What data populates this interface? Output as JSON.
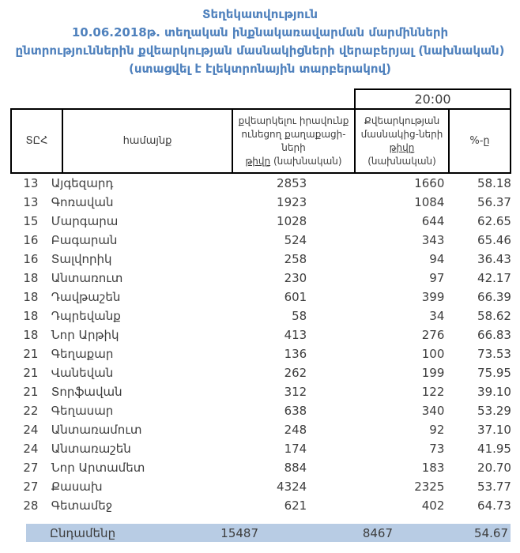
{
  "page": {
    "accent_blue": "#4f81bd",
    "highlight_blue": "#b8cce4",
    "text_color": "#3d3d3d"
  },
  "title": {
    "line1": "Տեղեկատվություն",
    "line2": "10.06.2018թ. տեղական ինքնակառավարման մարմինների",
    "line3": "ընտրություններին քվեարկության մասնակիցների վերաբերյալ (նախնական)",
    "line4": "(ստացվել է էլեկտրոնային տարբերակով)"
  },
  "table": {
    "time_label": "20:00",
    "headers": {
      "tec": "ՏԸՀ",
      "community": "համայնք",
      "eligible": {
        "line1": "քվեարկելու իրավունք",
        "line2": "ունեցող քաղաքացի-ների",
        "line3_underlined": "թիվը",
        "line3_rest": " (նախնական)"
      },
      "participants": {
        "line1": "Քվեարկության",
        "line2": "մասնակից-ների",
        "line3_underlined": "թիվը",
        "line3_rest": " (նախնական)"
      },
      "percent": {
        "pre": "%-",
        "underlined": "ը"
      }
    },
    "rows": [
      {
        "tec": "13",
        "community": "Այգեզարդ",
        "eligible": "2853",
        "participants": "1660",
        "percent": "58.18"
      },
      {
        "tec": "13",
        "community": "Գոռավան",
        "eligible": "1923",
        "participants": "1084",
        "percent": "56.37"
      },
      {
        "tec": "15",
        "community": "Մարգարա",
        "eligible": "1028",
        "participants": "644",
        "percent": "62.65"
      },
      {
        "tec": "16",
        "community": "Բագարան",
        "eligible": "524",
        "participants": "343",
        "percent": "65.46"
      },
      {
        "tec": "16",
        "community": "Տալվորիկ",
        "eligible": "258",
        "participants": "94",
        "percent": "36.43"
      },
      {
        "tec": "18",
        "community": "Անտառուտ",
        "eligible": "230",
        "participants": "97",
        "percent": "42.17"
      },
      {
        "tec": "18",
        "community": "Դավթաշեն",
        "eligible": "601",
        "participants": "399",
        "percent": "66.39"
      },
      {
        "tec": "18",
        "community": "Դպրեվանք",
        "eligible": "58",
        "participants": "34",
        "percent": "58.62"
      },
      {
        "tec": "18",
        "community": "Նոր Արթիկ",
        "eligible": "413",
        "participants": "276",
        "percent": "66.83"
      },
      {
        "tec": "21",
        "community": "Գեղաքար",
        "eligible": "136",
        "participants": "100",
        "percent": "73.53"
      },
      {
        "tec": "21",
        "community": "Վանեվան",
        "eligible": "262",
        "participants": "199",
        "percent": "75.95"
      },
      {
        "tec": "21",
        "community": "Տորֆավան",
        "eligible": "312",
        "participants": "122",
        "percent": "39.10"
      },
      {
        "tec": "22",
        "community": "Գեղասար",
        "eligible": "638",
        "participants": "340",
        "percent": "53.29"
      },
      {
        "tec": "24",
        "community": "Անտառամուտ",
        "eligible": "248",
        "participants": "92",
        "percent": "37.10"
      },
      {
        "tec": "24",
        "community": "Անտառաշեն",
        "eligible": "174",
        "participants": "73",
        "percent": "41.95"
      },
      {
        "tec": "27",
        "community": "Նոր Արտամետ",
        "eligible": "884",
        "participants": "183",
        "percent": "20.70"
      },
      {
        "tec": "27",
        "community": "Քասախ",
        "eligible": "4324",
        "participants": "2325",
        "percent": "53.77"
      },
      {
        "tec": "28",
        "community": "Գետամեջ",
        "eligible": "621",
        "participants": "402",
        "percent": "64.73"
      }
    ],
    "total": {
      "label": "Ընդամենը",
      "eligible": "15487",
      "participants": "8467",
      "percent": "54.67"
    }
  }
}
